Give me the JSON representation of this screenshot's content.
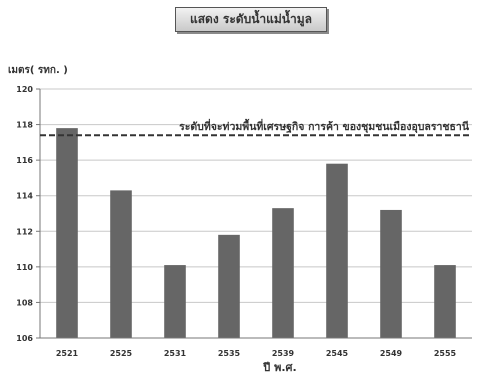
{
  "title": "แสดง ระดับน้ำแม่น้ำมูล",
  "unit_label": "เมตร( รทก. )",
  "chart_data": {
    "type": "bar",
    "title": "แสดง ระดับน้ำแม่น้ำมูล",
    "ylabel": "เมตร( รทก. )",
    "xlabel": "ปี พ.ศ.",
    "categories": [
      "2521",
      "2525",
      "2531",
      "2535",
      "2539",
      "2545",
      "2549",
      "2555"
    ],
    "values": [
      117.8,
      114.3,
      110.1,
      111.8,
      113.3,
      115.8,
      113.2,
      110.1
    ],
    "ylim": [
      106,
      120
    ],
    "yticks": [
      106,
      108,
      110,
      112,
      114,
      116,
      118,
      120
    ],
    "grid": true,
    "bar_color": "#666666",
    "reference_line": {
      "value": 117.4,
      "label": "ระดับที่จะท่วมพื้นที่เศรษฐกิจ การค้า ของชุมชนเมืองอุบลราชธานี",
      "style": "dashed"
    }
  }
}
